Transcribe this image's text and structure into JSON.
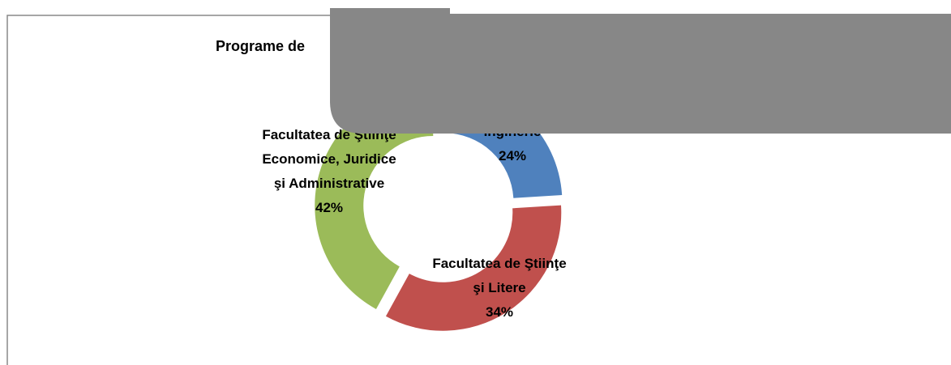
{
  "chart_data": {
    "type": "donut",
    "title": "Programe de",
    "categories": [
      "Inginerie",
      "Facultatea de Ştiinţe\nşi Litere",
      "Facultatea de Ştiinţe\nEconomice, Juridice\nşi Administrative"
    ],
    "values": [
      24,
      34,
      42
    ],
    "value_labels": [
      "24%",
      "34%",
      "42%"
    ],
    "colors": [
      "#4f81bd",
      "#c0504d",
      "#9bbb59"
    ]
  }
}
